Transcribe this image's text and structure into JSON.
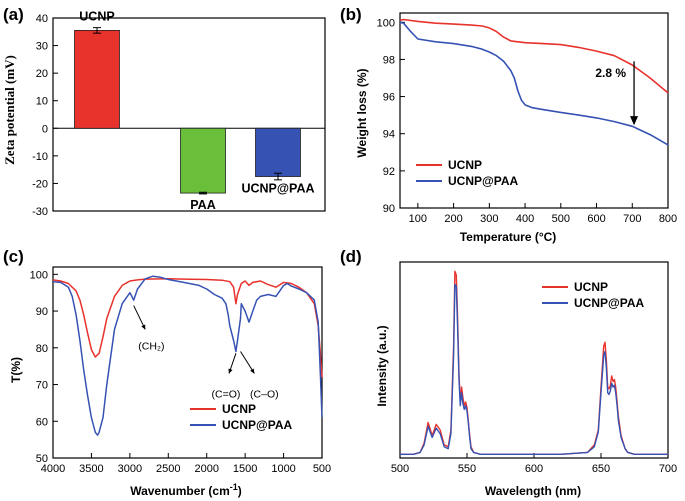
{
  "colors": {
    "ucnp": "#e8322c",
    "paa": "#6abf3a",
    "ucnp_paa": "#3653b4",
    "axis": "#000000"
  },
  "chart_data": [
    {
      "panel": "(a)",
      "type": "bar",
      "categories": [
        "UCNP",
        "PAA",
        "UCNP@PAA"
      ],
      "values": [
        35.5,
        -23.5,
        -17.5
      ],
      "errors": [
        1.0,
        0.3,
        1.2
      ],
      "bar_colors": [
        "#e8322c",
        "#6abf3a",
        "#3653b4"
      ],
      "ylabel": "Zeta potential (mV)",
      "ylim": [
        -30,
        40
      ],
      "yticks": [
        "-30",
        "-20",
        "-10",
        "0",
        "10",
        "20",
        "30",
        "40"
      ],
      "xlabel": "",
      "bar_labels": [
        "UCNP",
        "PAA",
        "UCNP@PAA"
      ]
    },
    {
      "panel": "(b)",
      "type": "line",
      "xlabel": "Temperature (°C)",
      "ylabel": "Weight loss (%)",
      "xlim": [
        50,
        800
      ],
      "ylim": [
        90,
        100.5
      ],
      "xticks": [
        "100",
        "200",
        "300",
        "400",
        "500",
        "600",
        "700",
        "800"
      ],
      "yticks": [
        "90",
        "92",
        "94",
        "96",
        "98",
        "100"
      ],
      "legend": [
        "UCNP",
        "UCNP@PAA"
      ],
      "annotation": "2.8 %",
      "series": [
        {
          "name": "UCNP",
          "color": "#e8322c",
          "x": [
            50,
            60,
            100,
            150,
            200,
            250,
            280,
            300,
            320,
            340,
            360,
            380,
            400,
            450,
            500,
            550,
            600,
            650,
            700,
            750,
            800
          ],
          "y": [
            100.1,
            100.15,
            100.05,
            99.95,
            99.9,
            99.85,
            99.8,
            99.7,
            99.5,
            99.2,
            99.0,
            98.95,
            98.9,
            98.85,
            98.8,
            98.65,
            98.45,
            98.2,
            97.7,
            97.0,
            96.2
          ]
        },
        {
          "name": "UCNP@PAA",
          "color": "#3653b4",
          "x": [
            50,
            60,
            80,
            100,
            150,
            200,
            250,
            280,
            300,
            320,
            340,
            360,
            370,
            380,
            390,
            400,
            420,
            450,
            500,
            550,
            600,
            650,
            700,
            750,
            800
          ],
          "y": [
            100.0,
            99.95,
            99.5,
            99.1,
            98.95,
            98.85,
            98.7,
            98.55,
            98.4,
            98.2,
            97.9,
            97.4,
            97.0,
            96.3,
            95.8,
            95.55,
            95.4,
            95.3,
            95.15,
            95.0,
            94.85,
            94.65,
            94.4,
            93.95,
            93.4
          ]
        }
      ]
    },
    {
      "panel": "(c)",
      "type": "line",
      "xlabel": "Wavenumber (cm",
      "xlabel_sup": "-1",
      "xlabel_end": ")",
      "ylabel": "T(%)",
      "xlim": [
        4000,
        500
      ],
      "ylim": [
        50,
        102
      ],
      "xticks": [
        "4000",
        "3500",
        "3000",
        "2500",
        "2000",
        "1500",
        "1000",
        "500"
      ],
      "yticks": [
        "50",
        "60",
        "70",
        "80",
        "90",
        "100"
      ],
      "legend": [
        "UCNP",
        "UCNP@PAA"
      ],
      "annotations": [
        "(CH₂)",
        "(C=O)",
        "(C–O)"
      ],
      "series": [
        {
          "name": "UCNP",
          "color": "#e8322c",
          "x": [
            4000,
            3900,
            3800,
            3700,
            3650,
            3600,
            3550,
            3500,
            3450,
            3400,
            3350,
            3300,
            3200,
            3100,
            3000,
            2900,
            2800,
            2500,
            2300,
            2000,
            1800,
            1700,
            1650,
            1620,
            1600,
            1550,
            1500,
            1450,
            1400,
            1300,
            1200,
            1100,
            1000,
            900,
            800,
            700,
            600,
            550,
            520,
            500
          ],
          "y": [
            98.5,
            98.2,
            97.5,
            95.5,
            93,
            89,
            84,
            79.5,
            77.5,
            78.5,
            83,
            88,
            94,
            97,
            98.2,
            98.5,
            98.7,
            98.8,
            98.7,
            98.6,
            98.4,
            98,
            96.5,
            92,
            94.5,
            97.5,
            98.2,
            97,
            97.8,
            98.2,
            97.2,
            96.5,
            97.8,
            97.5,
            96.5,
            95,
            92,
            86,
            78,
            72
          ]
        },
        {
          "name": "UCNP@PAA",
          "color": "#3653b4",
          "x": [
            4000,
            3900,
            3800,
            3750,
            3700,
            3650,
            3600,
            3550,
            3500,
            3450,
            3420,
            3400,
            3350,
            3300,
            3200,
            3100,
            3000,
            2950,
            2900,
            2800,
            2700,
            2600,
            2500,
            2300,
            2100,
            2000,
            1900,
            1800,
            1750,
            1720,
            1700,
            1650,
            1620,
            1600,
            1560,
            1550,
            1500,
            1450,
            1400,
            1350,
            1300,
            1200,
            1100,
            1000,
            950,
            900,
            800,
            700,
            600,
            550,
            520,
            500
          ],
          "y": [
            98,
            97.8,
            96.5,
            94,
            89,
            82,
            74,
            67,
            61,
            57,
            56.2,
            57,
            61,
            70,
            85,
            92,
            95,
            93,
            96,
            98.8,
            99.5,
            99.2,
            98.6,
            97.8,
            97,
            96,
            94.5,
            93.5,
            92,
            89,
            86,
            82,
            79,
            82,
            88,
            92,
            90,
            87,
            90,
            93,
            94,
            94.5,
            94,
            97,
            97.5,
            96.8,
            96,
            95,
            93,
            87,
            72,
            61
          ]
        }
      ]
    },
    {
      "panel": "(d)",
      "type": "line",
      "xlabel": "Wavelength (nm)",
      "ylabel": "Intensity (a.u.)",
      "xlim": [
        500,
        700
      ],
      "ylim": [
        0,
        1.05
      ],
      "xticks": [
        "500",
        "550",
        "600",
        "650",
        "700"
      ],
      "yticks": [],
      "legend": [
        "UCNP",
        "UCNP@PAA"
      ],
      "series": [
        {
          "name": "UCNP",
          "color": "#e8322c",
          "x": [
            500,
            510,
            515,
            518,
            521,
            524,
            527,
            530,
            533,
            536,
            538,
            540,
            541,
            542,
            543,
            544,
            545,
            546,
            547,
            548,
            549,
            550,
            551,
            552,
            553,
            555,
            560,
            570,
            580,
            600,
            620,
            640,
            645,
            648,
            650,
            652,
            653,
            654,
            655,
            656,
            657,
            658,
            659,
            660,
            661,
            662,
            663,
            665,
            668,
            670,
            675,
            680,
            690,
            700
          ],
          "y": [
            0.02,
            0.02,
            0.03,
            0.08,
            0.19,
            0.12,
            0.18,
            0.15,
            0.07,
            0.06,
            0.15,
            0.6,
            1.0,
            0.98,
            0.75,
            0.45,
            0.3,
            0.38,
            0.32,
            0.28,
            0.3,
            0.27,
            0.2,
            0.12,
            0.06,
            0.03,
            0.02,
            0.02,
            0.02,
            0.02,
            0.02,
            0.03,
            0.07,
            0.15,
            0.38,
            0.6,
            0.62,
            0.52,
            0.38,
            0.37,
            0.39,
            0.44,
            0.41,
            0.42,
            0.38,
            0.3,
            0.22,
            0.12,
            0.05,
            0.03,
            0.02,
            0.02,
            0.02,
            0.02
          ]
        },
        {
          "name": "UCNP@PAA",
          "color": "#3653b4",
          "x": [
            500,
            510,
            515,
            518,
            521,
            524,
            527,
            530,
            533,
            536,
            538,
            540,
            541,
            542,
            543,
            544,
            545,
            546,
            547,
            548,
            549,
            550,
            551,
            552,
            553,
            555,
            560,
            570,
            580,
            600,
            620,
            640,
            645,
            648,
            650,
            652,
            653,
            654,
            655,
            656,
            657,
            658,
            659,
            660,
            661,
            662,
            663,
            665,
            668,
            670,
            675,
            680,
            690,
            700
          ],
          "y": [
            0.02,
            0.02,
            0.03,
            0.07,
            0.17,
            0.11,
            0.16,
            0.13,
            0.06,
            0.05,
            0.13,
            0.55,
            0.93,
            0.92,
            0.7,
            0.42,
            0.28,
            0.35,
            0.29,
            0.26,
            0.28,
            0.25,
            0.19,
            0.11,
            0.05,
            0.03,
            0.02,
            0.02,
            0.02,
            0.02,
            0.02,
            0.03,
            0.06,
            0.14,
            0.35,
            0.55,
            0.57,
            0.48,
            0.35,
            0.34,
            0.36,
            0.4,
            0.38,
            0.39,
            0.35,
            0.28,
            0.2,
            0.11,
            0.05,
            0.03,
            0.02,
            0.02,
            0.02,
            0.02
          ]
        }
      ]
    }
  ]
}
